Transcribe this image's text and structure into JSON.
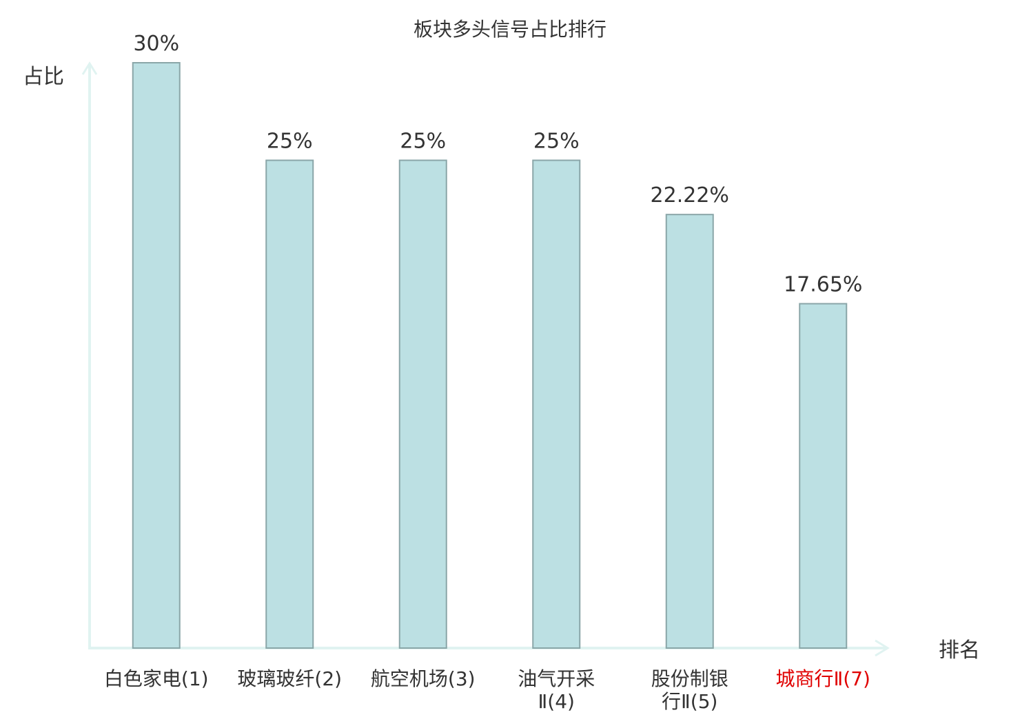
{
  "chart_data": {
    "type": "bar",
    "title": "板块多头信号占比排行",
    "ylabel": "占比",
    "xlabel": "排名",
    "categories": [
      [
        "白色家电(1)"
      ],
      [
        "玻璃玻纤(2)"
      ],
      [
        "航空机场(3)"
      ],
      [
        "油气开采",
        "Ⅱ(4)"
      ],
      [
        "股份制银",
        "行Ⅱ(5)"
      ],
      [
        "城商行Ⅱ(7)"
      ]
    ],
    "values": [
      30,
      25,
      25,
      25,
      22.22,
      17.65
    ],
    "value_labels": [
      "30%",
      "25%",
      "25%",
      "25%",
      "22.22%",
      "17.65%"
    ],
    "highlight_index": 5,
    "ylim": [
      0,
      30
    ],
    "grid": false,
    "colors": {
      "bar_fill": "#bce0e3",
      "bar_stroke": "#8aa6a8",
      "axis": "#e0f3f1",
      "text": "#333333",
      "highlight_text": "#e00000"
    }
  }
}
